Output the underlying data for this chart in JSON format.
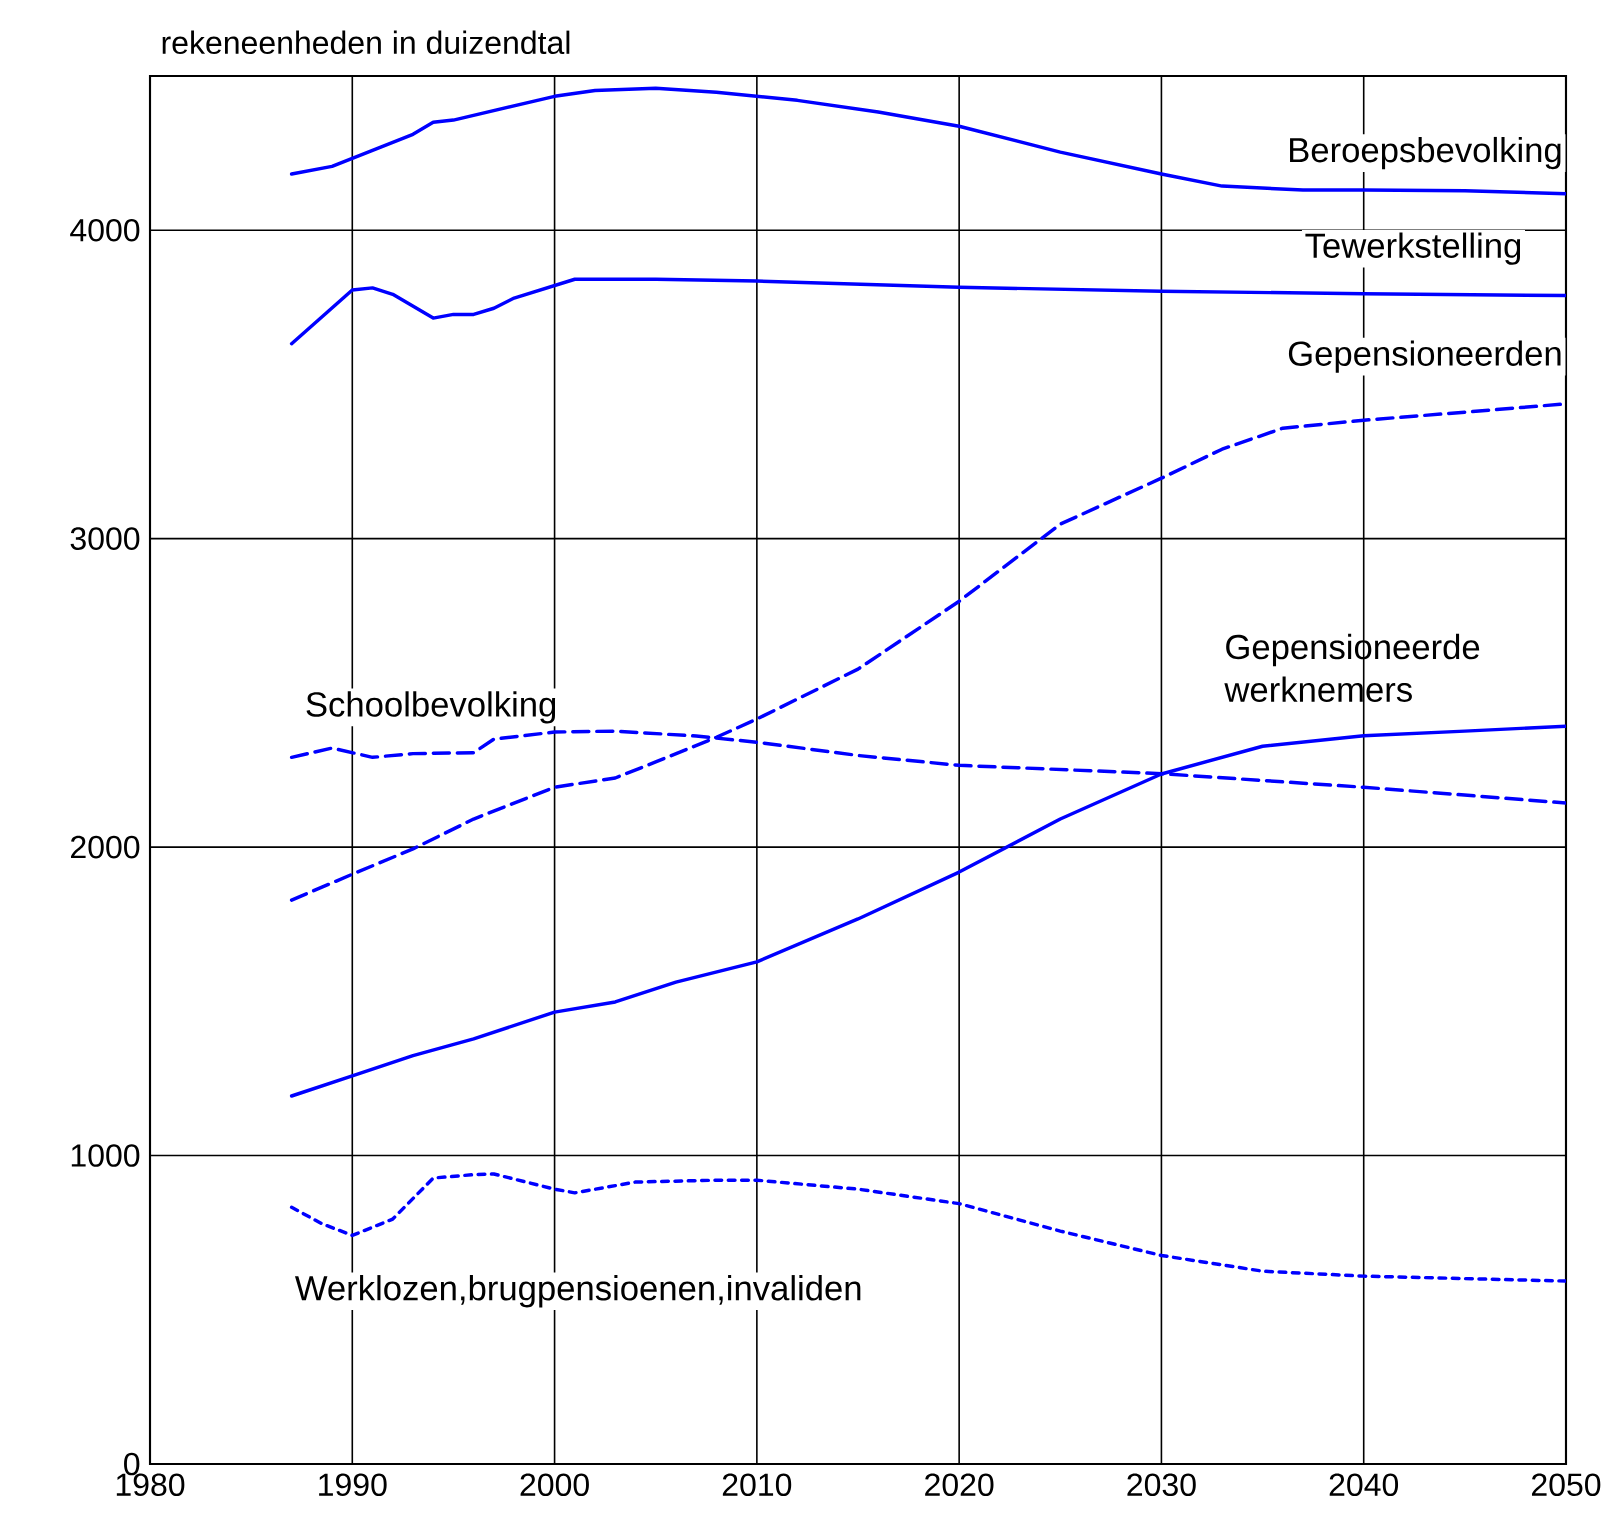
{
  "chart_data": {
    "type": "line",
    "ylabel": "rekeneenheden in duizendtal",
    "xlim": [
      1980,
      2050
    ],
    "ylim": [
      0,
      4500
    ],
    "xticks": [
      1980,
      1990,
      2000,
      2010,
      2020,
      2030,
      2040,
      2050
    ],
    "yticks": [
      0,
      1000,
      2000,
      3000,
      4000
    ],
    "grid": true,
    "legend": false,
    "marker": "none",
    "series": [
      {
        "name": "Beroepsbevolking",
        "color": "#0000ff",
        "line_style": "solid",
        "x": [
          1987,
          1989,
          1991,
          1993,
          1994,
          1995,
          2000,
          2002,
          2005,
          2008,
          2012,
          2016,
          2020,
          2025,
          2030,
          2033,
          2037,
          2040,
          2045,
          2050
        ],
        "values": [
          4182,
          4207,
          4259,
          4311,
          4350,
          4357,
          4434,
          4453,
          4460,
          4447,
          4421,
          4383,
          4337,
          4253,
          4182,
          4143,
          4130,
          4130,
          4128,
          4118
        ]
      },
      {
        "name": "Tewerkstelling",
        "color": "#0000ff",
        "line_style": "solid",
        "x": [
          1987,
          1990,
          1991,
          1992,
          1994,
          1995,
          1996,
          1997,
          1998,
          2001,
          2005,
          2010,
          2020,
          2030,
          2040,
          2050
        ],
        "values": [
          3632,
          3806,
          3813,
          3792,
          3715,
          3727,
          3727,
          3747,
          3780,
          3841,
          3841,
          3835,
          3815,
          3802,
          3794,
          3788
        ]
      },
      {
        "name": "Gepensioneerden",
        "color": "#0000ff",
        "line_style": "dashed",
        "x": [
          1987,
          1990,
          1993,
          1996,
          2000,
          2003,
          2005,
          2008,
          2010,
          2015,
          2020,
          2025,
          2030,
          2033,
          2036,
          2040,
          2045,
          2050
        ],
        "values": [
          1828,
          1912,
          1994,
          2091,
          2194,
          2224,
          2276,
          2356,
          2415,
          2577,
          2797,
          3047,
          3196,
          3290,
          3358,
          3384,
          3410,
          3437
        ]
      },
      {
        "name": "Schoolbevolking",
        "color": "#0000ff",
        "line_style": "dashed",
        "x": [
          1987,
          1989,
          1991,
          1993,
          1996,
          1997,
          2000,
          2003,
          2007,
          2010,
          2015,
          2020,
          2030,
          2040,
          2050
        ],
        "values": [
          2291,
          2321,
          2291,
          2303,
          2306,
          2350,
          2373,
          2376,
          2360,
          2340,
          2297,
          2265,
          2238,
          2194,
          2143
        ]
      },
      {
        "name": "Gepensioneerde werknemers",
        "color": "#0000ff",
        "line_style": "solid",
        "x": [
          1987,
          1990,
          1993,
          1996,
          2000,
          2003,
          2006,
          2010,
          2015,
          2020,
          2025,
          2030,
          2035,
          2040,
          2045,
          2050
        ],
        "values": [
          1193,
          1258,
          1324,
          1378,
          1465,
          1498,
          1562,
          1628,
          1767,
          1919,
          2091,
          2237,
          2327,
          2361,
          2376,
          2392
        ]
      },
      {
        "name": "Werklozen,brugpensioenen,invaliden",
        "color": "#0000ff",
        "line_style": "dotted",
        "x": [
          1987,
          1988.5,
          1990,
          1992,
          1994,
          1996,
          1997,
          2000,
          2001,
          2004,
          2008,
          2010,
          2015,
          2020,
          2025,
          2030,
          2035,
          2040,
          2050
        ],
        "values": [
          832,
          779,
          741,
          794,
          927,
          938,
          940,
          891,
          879,
          914,
          920,
          920,
          891,
          844,
          755,
          676,
          625,
          609,
          593
        ]
      }
    ]
  }
}
